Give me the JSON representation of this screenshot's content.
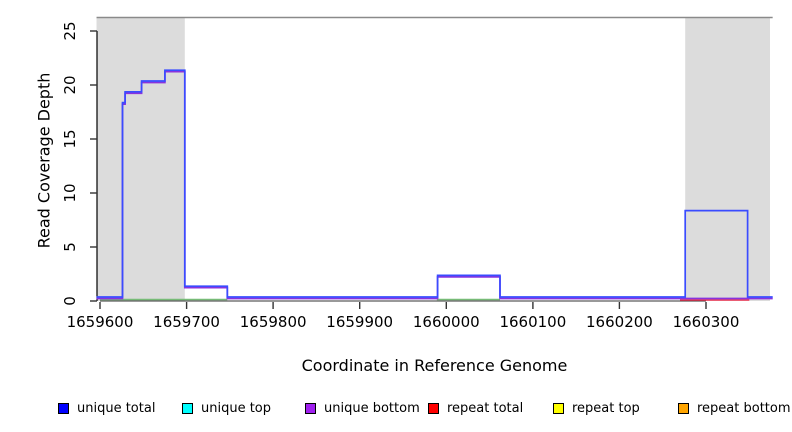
{
  "chart_data": {
    "type": "line",
    "subtype": "step-coverage-plot",
    "title": "",
    "xlabel": "Coordinate in Reference Genome",
    "ylabel": "Read Coverage Depth",
    "xlim": [
      1659596,
      1660377
    ],
    "ylim": [
      0,
      26.25
    ],
    "grid": false,
    "legend_position": "bottom",
    "x_ticks": [
      1659600,
      1659700,
      1659800,
      1659900,
      1660000,
      1660100,
      1660200,
      1660300
    ],
    "y_ticks": [
      0,
      5,
      10,
      15,
      20,
      25
    ],
    "axes": {
      "x": {
        "coord0": 1659600,
        "px0": 100,
        "coord1": 1660300,
        "px1": 706
      },
      "y": {
        "val0": 0,
        "px0": 301,
        "val1": 25,
        "px1": 31
      }
    },
    "colors": {
      "band": "#dcdcdc",
      "top_line": "#8a8a8a",
      "axis": "#000000",
      "tick": "#333333",
      "blue_line": "#3a4cff",
      "purple_line": "#8833dd",
      "green_line": "#77bb77",
      "red_line": "#ee3350"
    },
    "shaded_regions": [
      {
        "x1": 1659596,
        "x2": 1659698
      },
      {
        "x1": 1660276,
        "x2": 1660374
      }
    ],
    "top_line_y": 26.25,
    "series": [
      {
        "name": "unique top / repeat top baseline (green)",
        "color_key": "green_line",
        "dy": -1.5,
        "width": 1.6,
        "points": [
          [
            1659600,
            0
          ],
          [
            1659747,
            0
          ]
        ]
      },
      {
        "name": "unique top baseline segment 2 (green)",
        "color_key": "green_line",
        "dy": -1.5,
        "width": 1.6,
        "points": [
          [
            1659989,
            0
          ],
          [
            1660062,
            0
          ]
        ]
      },
      {
        "name": "repeat total baseline (red)",
        "color_key": "red_line",
        "dy": -1.0,
        "width": 1.6,
        "points": [
          [
            1660270,
            0
          ],
          [
            1660350,
            0
          ]
        ]
      },
      {
        "name": "unique bottom",
        "color_key": "purple_line",
        "dy": -2.5,
        "width": 1.7,
        "points": [
          [
            1659596,
            0
          ],
          [
            1659626,
            0
          ],
          [
            1659626,
            18
          ],
          [
            1659629,
            18
          ],
          [
            1659629,
            19
          ],
          [
            1659648,
            19
          ],
          [
            1659648,
            20
          ],
          [
            1659675,
            20
          ],
          [
            1659675,
            21
          ],
          [
            1659698,
            21
          ],
          [
            1659698,
            1
          ],
          [
            1659747,
            1
          ],
          [
            1659747,
            0
          ],
          [
            1659990,
            0
          ],
          [
            1659990,
            2
          ],
          [
            1660062,
            2
          ],
          [
            1660062,
            0
          ],
          [
            1660377,
            0
          ]
        ]
      },
      {
        "name": "unique total",
        "color_key": "blue_line",
        "dy": -4.0,
        "width": 1.7,
        "points": [
          [
            1659596,
            0
          ],
          [
            1659626,
            0
          ],
          [
            1659626,
            18
          ],
          [
            1659629,
            18
          ],
          [
            1659629,
            19
          ],
          [
            1659648,
            19
          ],
          [
            1659648,
            20
          ],
          [
            1659675,
            20
          ],
          [
            1659675,
            21
          ],
          [
            1659698,
            21
          ],
          [
            1659698,
            1
          ],
          [
            1659747,
            1
          ],
          [
            1659747,
            0
          ],
          [
            1659990,
            0
          ],
          [
            1659990,
            2
          ],
          [
            1660062,
            2
          ],
          [
            1660062,
            0
          ],
          [
            1660276,
            0
          ],
          [
            1660276,
            8
          ],
          [
            1660348,
            8
          ],
          [
            1660348,
            0
          ],
          [
            1660377,
            0
          ]
        ]
      }
    ],
    "legend": [
      {
        "label": "unique total",
        "color": "#0000ff"
      },
      {
        "label": "unique top",
        "color": "#00ffff"
      },
      {
        "label": "unique bottom",
        "color": "#a020f0"
      },
      {
        "label": "repeat total",
        "color": "#ff0000"
      },
      {
        "label": "repeat top",
        "color": "#ffff00"
      },
      {
        "label": "repeat bottom",
        "color": "#ffa500"
      }
    ],
    "legend_x": [
      58,
      182,
      305,
      428,
      553,
      678
    ]
  }
}
